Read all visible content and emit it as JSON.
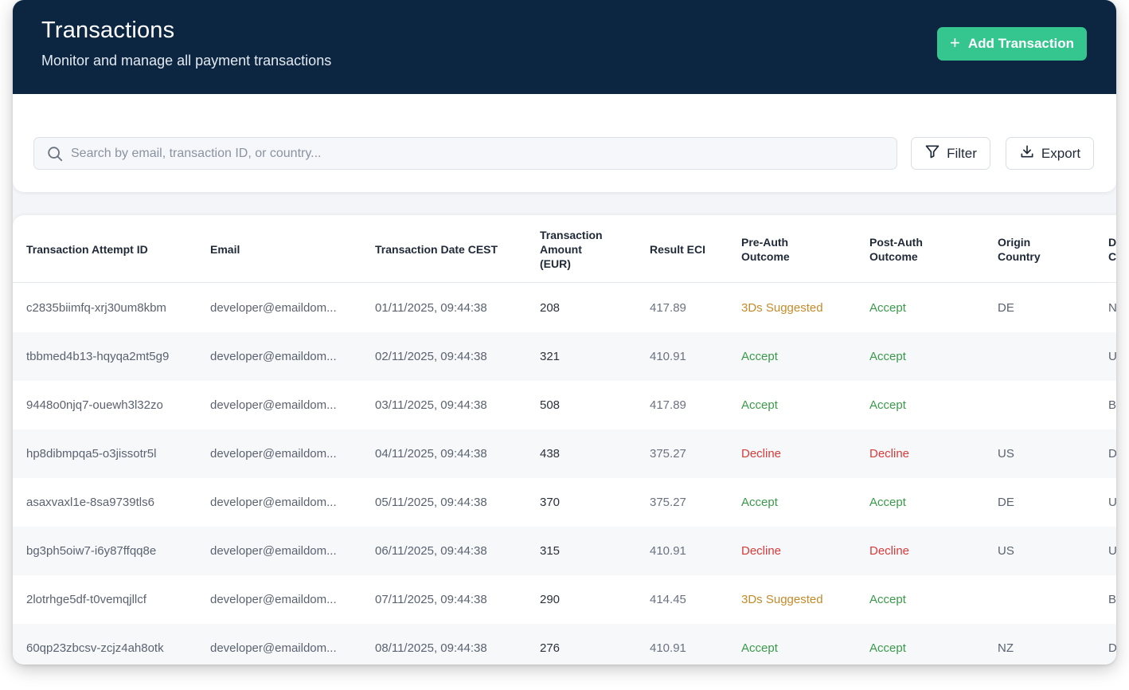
{
  "header": {
    "title": "Transactions",
    "subtitle": "Monitor and manage all payment transactions",
    "add_button_label": "Add Transaction"
  },
  "search": {
    "placeholder": "Search by email, transaction ID, or country...",
    "filter_label": "Filter",
    "export_label": "Export"
  },
  "colors": {
    "header_bg": "#0c2641",
    "accent": "#35c68f",
    "accept": "#3a9a4a",
    "decline": "#d93a3a",
    "suggested": "#c58a2a"
  },
  "table": {
    "columns": [
      "Transaction Attempt ID",
      "Email",
      "Transaction Date CEST",
      "Transaction\nAmount\n(EUR)",
      "Result ECI",
      "Pre-Auth\nOutcome",
      "Post-Auth\nOutcome",
      "Origin\nCountry",
      "D\nC"
    ],
    "rows": [
      {
        "id": "c2835biimfq-xrj30um8kbm",
        "email": "developer@emaildom...",
        "date": "01/11/2025, 09:44:38",
        "amount": "208",
        "eci": "417.89",
        "pre": "3Ds Suggested",
        "post": "Accept",
        "country": "DE",
        "extra": "N"
      },
      {
        "id": "tbbmed4b13-hqyqa2mt5g9",
        "email": "developer@emaildom...",
        "date": "02/11/2025, 09:44:38",
        "amount": "321",
        "eci": "410.91",
        "pre": "Accept",
        "post": "Accept",
        "country": "",
        "extra": "U"
      },
      {
        "id": "9448o0njq7-ouewh3l32zo",
        "email": "developer@emaildom...",
        "date": "03/11/2025, 09:44:38",
        "amount": "508",
        "eci": "417.89",
        "pre": "Accept",
        "post": "Accept",
        "country": "",
        "extra": "B"
      },
      {
        "id": "hp8dibmpqa5-o3jissotr5l",
        "email": "developer@emaildom...",
        "date": "04/11/2025, 09:44:38",
        "amount": "438",
        "eci": "375.27",
        "pre": "Decline",
        "post": "Decline",
        "country": "US",
        "extra": "D"
      },
      {
        "id": "asaxvaxl1e-8sa9739tls6",
        "email": "developer@emaildom...",
        "date": "05/11/2025, 09:44:38",
        "amount": "370",
        "eci": "375.27",
        "pre": "Accept",
        "post": "Accept",
        "country": "DE",
        "extra": "U"
      },
      {
        "id": "bg3ph5oiw7-i6y87ffqq8e",
        "email": "developer@emaildom...",
        "date": "06/11/2025, 09:44:38",
        "amount": "315",
        "eci": "410.91",
        "pre": "Decline",
        "post": "Decline",
        "country": "US",
        "extra": "U"
      },
      {
        "id": "2lotrhge5df-t0vemqjllcf",
        "email": "developer@emaildom...",
        "date": "07/11/2025, 09:44:38",
        "amount": "290",
        "eci": "414.45",
        "pre": "3Ds Suggested",
        "post": "Accept",
        "country": "",
        "extra": "B"
      },
      {
        "id": "60qp23zbcsv-zcjz4ah8otk",
        "email": "developer@emaildom...",
        "date": "08/11/2025, 09:44:38",
        "amount": "276",
        "eci": "410.91",
        "pre": "Accept",
        "post": "Accept",
        "country": "NZ",
        "extra": "D"
      }
    ]
  }
}
